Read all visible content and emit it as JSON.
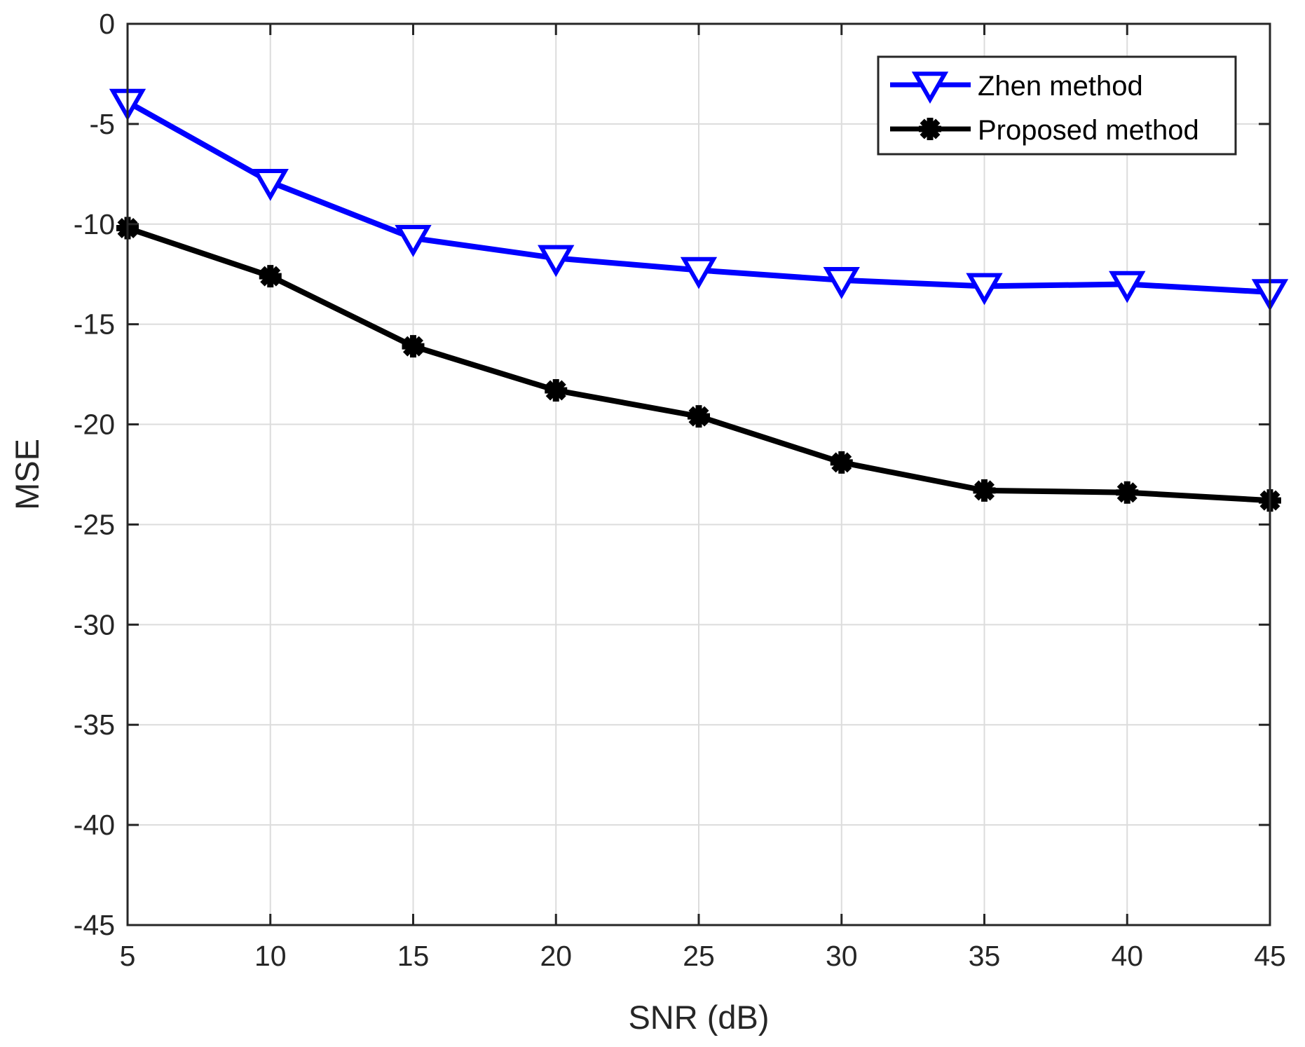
{
  "chart_data": {
    "type": "line",
    "title": "",
    "xlabel": "SNR (dB)",
    "ylabel": "MSE",
    "x": [
      5,
      10,
      15,
      20,
      25,
      30,
      35,
      40,
      45
    ],
    "xlim": [
      5,
      45
    ],
    "ylim": [
      -45,
      0
    ],
    "xticks": [
      5,
      10,
      15,
      20,
      25,
      30,
      35,
      40,
      45
    ],
    "yticks": [
      0,
      -5,
      -10,
      -15,
      -20,
      -25,
      -30,
      -35,
      -40,
      -45
    ],
    "xtick_labels": [
      "5",
      "10",
      "15",
      "20",
      "25",
      "30",
      "35",
      "40",
      "45"
    ],
    "ytick_labels": [
      "0",
      "-5",
      "-10",
      "-15",
      "-20",
      "-25",
      "-30",
      "-35",
      "-40",
      "-45"
    ],
    "grid": true,
    "legend_position": "top-right",
    "series": [
      {
        "name": "Zhen method",
        "color": "#0000ff",
        "marker": "triangle-down",
        "values": [
          -3.9,
          -7.9,
          -10.7,
          -11.7,
          -12.3,
          -12.8,
          -13.1,
          -13.0,
          -13.4
        ]
      },
      {
        "name": "Proposed method",
        "color": "#000000",
        "marker": "asterisk",
        "values": [
          -10.2,
          -12.6,
          -16.1,
          -18.3,
          -19.6,
          -21.9,
          -23.3,
          -23.4,
          -23.8
        ]
      }
    ]
  }
}
